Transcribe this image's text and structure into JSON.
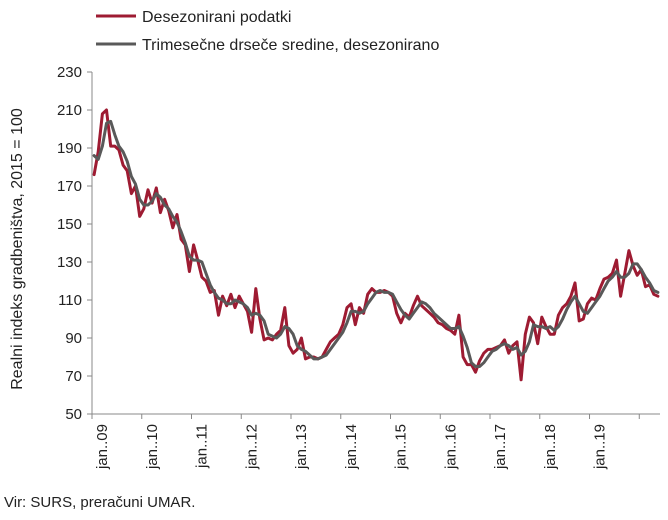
{
  "chart_data": {
    "type": "line",
    "ylabel": "Realni indeks gradbeništva, 2015 = 100",
    "ylim": [
      50,
      230
    ],
    "yticks": [
      50,
      70,
      90,
      110,
      130,
      150,
      170,
      190,
      210,
      230
    ],
    "xlim_months": [
      "2009-01",
      "2019-12"
    ],
    "xtick_labels": [
      "jan..09",
      "jan..10",
      "jan..11",
      "jan..12",
      "jan..13",
      "jan..14",
      "jan..15",
      "jan..16",
      "jan..17",
      "jan..18",
      "jan..19"
    ],
    "legend_position": "top-left",
    "series": [
      {
        "name": "Desezonirani podatki",
        "color": "#9e1b32",
        "values": [
          176,
          188,
          208,
          210,
          191,
          191,
          189,
          181,
          178,
          166,
          170,
          154,
          158,
          168,
          161,
          169,
          156,
          163,
          157,
          148,
          155,
          142,
          139,
          125,
          139,
          131,
          122,
          120,
          114,
          115,
          102,
          112,
          107,
          113,
          106,
          112,
          108,
          104,
          93,
          116,
          100,
          89,
          90,
          89,
          92,
          94,
          106,
          86,
          82,
          84,
          90,
          79,
          80,
          80,
          79,
          80,
          84,
          88,
          90,
          92,
          97,
          106,
          108,
          97,
          106,
          103,
          113,
          116,
          114,
          114,
          115,
          114,
          112,
          103,
          98,
          103,
          101,
          107,
          112,
          107,
          105,
          103,
          101,
          98,
          97,
          95,
          94,
          92,
          102,
          80,
          76,
          76,
          72,
          78,
          82,
          84,
          84,
          85,
          86,
          89,
          82,
          86,
          88,
          68,
          92,
          101,
          98,
          87,
          101,
          96,
          92,
          92,
          102,
          106,
          108,
          112,
          119,
          99,
          100,
          108,
          111,
          110,
          116,
          121,
          122,
          124,
          131,
          112,
          124,
          136,
          128,
          123,
          126,
          117,
          118,
          113,
          112
        ]
      },
      {
        "name": "Trimesečne drseče sredine, desezonirano",
        "color": "#595959",
        "values": [
          186,
          184,
          191,
          203,
          204,
          197,
          191,
          188,
          183,
          175,
          171,
          163,
          160,
          160,
          162,
          166,
          164,
          160,
          158,
          154,
          151,
          146,
          140,
          133,
          131,
          131,
          130,
          124,
          118,
          114,
          111,
          110,
          108,
          108,
          110,
          109,
          108,
          106,
          102,
          103,
          102,
          99,
          92,
          91,
          90,
          92,
          96,
          95,
          92,
          86,
          84,
          83,
          81,
          79,
          79,
          80,
          81,
          84,
          87,
          90,
          93,
          98,
          104,
          104,
          103,
          104,
          108,
          111,
          114,
          115,
          114,
          114,
          113,
          109,
          105,
          102,
          100,
          103,
          106,
          109,
          108,
          106,
          103,
          101,
          99,
          97,
          95,
          95,
          96,
          91,
          85,
          77,
          75,
          75,
          77,
          80,
          83,
          84,
          86,
          87,
          86,
          84,
          85,
          81,
          83,
          88,
          97,
          96,
          96,
          95,
          96,
          94,
          96,
          100,
          105,
          109,
          112,
          108,
          104,
          103,
          106,
          109,
          112,
          116,
          120,
          122,
          125,
          122,
          122,
          124,
          129,
          129,
          126,
          122,
          119,
          115,
          114
        ]
      }
    ]
  },
  "source": "Vir: SURS, preračuni UMAR."
}
